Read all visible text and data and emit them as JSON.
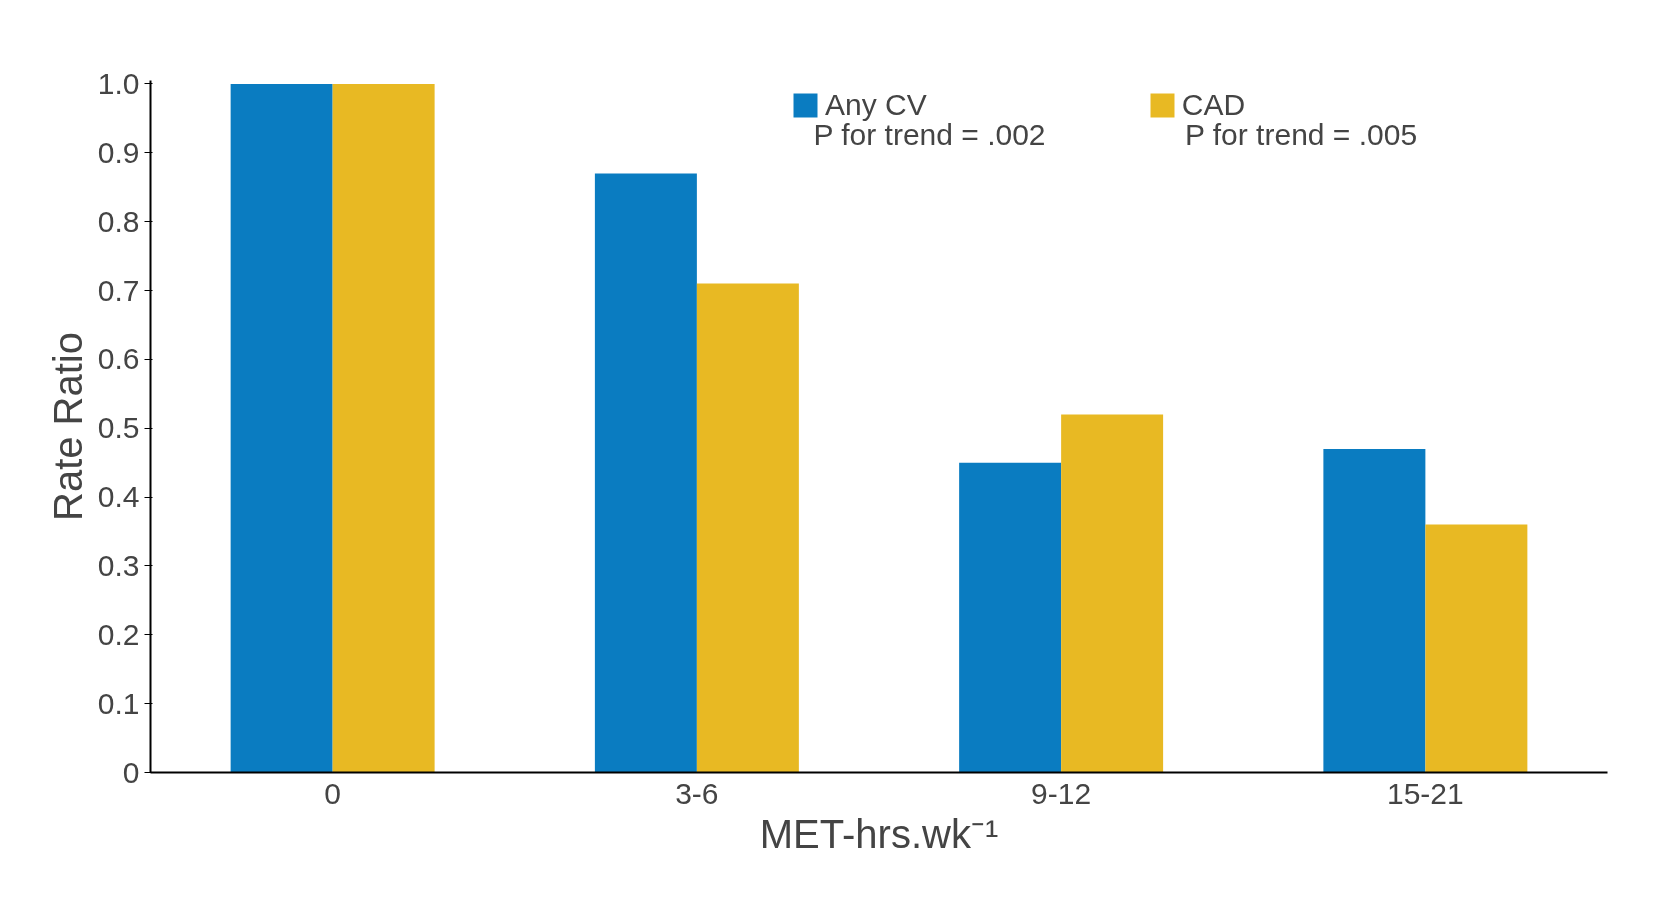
{
  "chart_data": {
    "type": "bar",
    "categories": [
      "0",
      "3-6",
      "9-12",
      "15-21"
    ],
    "series": [
      {
        "name": "Any CV",
        "color": "#0a7cc1",
        "values": [
          1.0,
          0.87,
          0.45,
          0.47
        ]
      },
      {
        "name": "CAD",
        "color": "#e8b923",
        "values": [
          1.0,
          0.71,
          0.52,
          0.36
        ]
      }
    ],
    "xlabel": "MET-hrs.wk⁻¹",
    "ylabel": "Rate Ratio",
    "ylim": [
      0,
      1.0
    ],
    "yticks": [
      0,
      0.1,
      0.2,
      0.3,
      0.4,
      0.5,
      0.6,
      0.7,
      0.8,
      0.9,
      {
        "value": 1.0,
        "label": "1.0"
      }
    ],
    "annotations": [
      "P for trend = .002",
      "P for trend = .005"
    ],
    "legend": "top right",
    "grid": false
  }
}
